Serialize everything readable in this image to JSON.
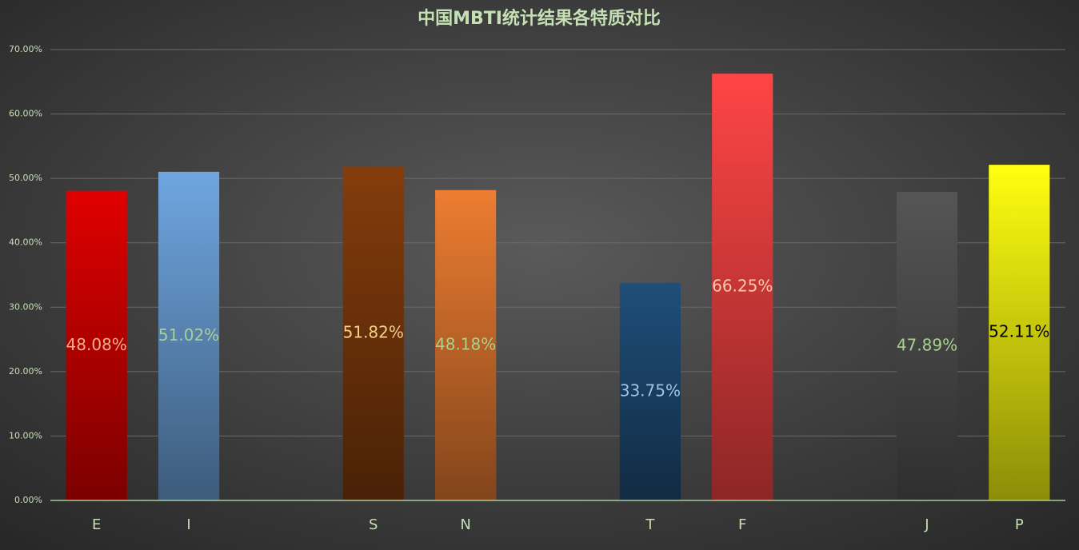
{
  "chart_data": {
    "type": "bar",
    "title": "中国MBTI统计结果各特质对比",
    "categories": [
      "E",
      "I",
      null,
      "S",
      "N",
      null,
      "T",
      "F",
      null,
      "J",
      "P"
    ],
    "values": [
      48.08,
      51.02,
      null,
      51.82,
      48.18,
      null,
      33.75,
      66.25,
      null,
      47.89,
      52.11
    ],
    "value_labels": [
      "48.08%",
      "51.02%",
      null,
      "51.82%",
      "48.18%",
      null,
      "33.75%",
      "66.25%",
      null,
      "47.89%",
      "52.11%"
    ],
    "colors": [
      "#e00000",
      "#6fa6e0",
      null,
      "#843c0c",
      "#ed7d31",
      null,
      "#1f4e79",
      "#ff4545",
      null,
      "#555555",
      "#ffff10"
    ],
    "label_colors": [
      "#f4b183",
      "#a9d18e",
      null,
      "#f4d28a",
      "#a9d18e",
      null,
      "#9dc3e6",
      "#f8cbad",
      null,
      "#a9d18e",
      "#000000"
    ],
    "ylim": [
      0,
      70
    ],
    "yticks": [
      {
        "value": 0,
        "label": "0.00%"
      },
      {
        "value": 10,
        "label": "10.00%"
      },
      {
        "value": 20,
        "label": "20.00%"
      },
      {
        "value": 30,
        "label": "30.00%"
      },
      {
        "value": 40,
        "label": "40.00%"
      },
      {
        "value": 50,
        "label": "50.00%"
      },
      {
        "value": 60,
        "label": "60.00%"
      },
      {
        "value": 70,
        "label": "70.00%"
      }
    ],
    "grid": true
  }
}
